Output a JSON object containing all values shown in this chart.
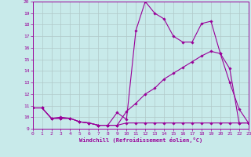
{
  "xlabel": "Windchill (Refroidissement éolien,°C)",
  "background_color": "#c8eaea",
  "line_color": "#990099",
  "grid_color": "#b0c8c8",
  "xlim": [
    0,
    23
  ],
  "ylim": [
    9,
    20
  ],
  "xticks": [
    0,
    1,
    2,
    3,
    4,
    5,
    6,
    7,
    8,
    9,
    10,
    11,
    12,
    13,
    14,
    15,
    16,
    17,
    18,
    19,
    20,
    21,
    22,
    23
  ],
  "yticks": [
    9,
    10,
    11,
    12,
    13,
    14,
    15,
    16,
    17,
    18,
    19,
    20
  ],
  "line1_x": [
    0,
    1,
    2,
    3,
    4,
    5,
    6,
    7,
    8,
    9,
    10,
    11,
    12,
    13,
    14,
    15,
    16,
    17,
    18,
    19,
    20,
    21,
    22,
    23
  ],
  "line1_y": [
    10.8,
    10.8,
    9.9,
    10.0,
    9.9,
    9.6,
    9.5,
    9.3,
    9.3,
    10.4,
    9.8,
    17.5,
    20.0,
    19.0,
    18.5,
    17.0,
    16.5,
    16.5,
    18.1,
    18.3,
    15.5,
    13.0,
    10.7,
    9.5
  ],
  "line2_x": [
    0,
    1,
    2,
    3,
    4,
    5,
    6,
    7,
    8,
    9,
    10,
    11,
    12,
    13,
    14,
    15,
    16,
    17,
    18,
    19,
    20,
    21,
    22,
    23
  ],
  "line2_y": [
    10.8,
    10.8,
    9.9,
    9.9,
    9.9,
    9.6,
    9.5,
    9.3,
    9.3,
    9.3,
    10.5,
    11.2,
    12.0,
    12.5,
    13.3,
    13.8,
    14.3,
    14.8,
    15.3,
    15.7,
    15.5,
    14.2,
    9.5,
    9.5
  ],
  "line3_x": [
    0,
    1,
    2,
    3,
    4,
    5,
    6,
    7,
    8,
    9,
    10,
    11,
    12,
    13,
    14,
    15,
    16,
    17,
    18,
    19,
    20,
    21,
    22,
    23
  ],
  "line3_y": [
    10.8,
    10.8,
    9.9,
    9.9,
    9.9,
    9.6,
    9.5,
    9.3,
    9.3,
    9.3,
    9.5,
    9.5,
    9.5,
    9.5,
    9.5,
    9.5,
    9.5,
    9.5,
    9.5,
    9.5,
    9.5,
    9.5,
    9.5,
    9.5
  ]
}
